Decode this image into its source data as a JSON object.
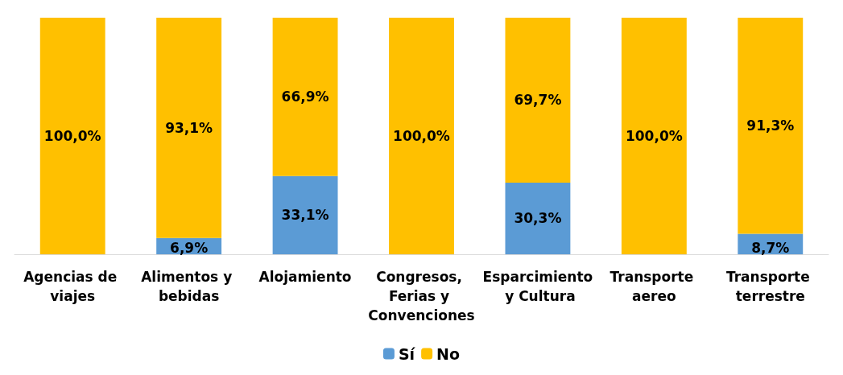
{
  "chart_data": {
    "type": "bar",
    "stacked": true,
    "legend": "bottom",
    "categories": [
      "Agencias de viajes",
      "Alimentos y bebidas",
      "Alojamiento",
      "Congresos, Ferias y Convenciones",
      "Esparcimiento y Cultura",
      "Transporte aereo",
      "Transporte terrestre"
    ],
    "series": [
      {
        "name": "Sí",
        "color": "#5b9bd5",
        "values": [
          0,
          6.9,
          33.1,
          0,
          30.3,
          0,
          8.7
        ],
        "value_labels": [
          null,
          "6,9%",
          "33,1%",
          null,
          "30,3%",
          null,
          "8,7%"
        ]
      },
      {
        "name": "No",
        "color": "#ffc000",
        "values": [
          100,
          93.1,
          66.9,
          100,
          69.7,
          100,
          91.3
        ],
        "value_labels": [
          "100,0%",
          "93,1%",
          "66,9%",
          "100,0%",
          "69,7%",
          "100,0%",
          "91,3%"
        ]
      }
    ]
  }
}
